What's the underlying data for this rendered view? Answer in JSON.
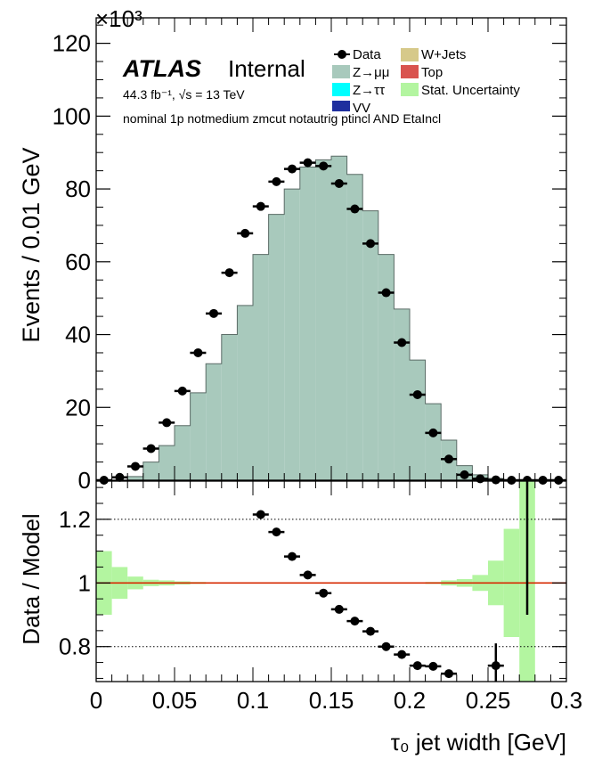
{
  "chart_data": [
    {
      "type": "histogram",
      "panel": "main",
      "experiment_label": "ATLAS",
      "status_label": "Internal",
      "lumi_text": "44.3 fb⁻¹, √s = 13 TeV",
      "selection_text": "nominal 1p notmedium zmcut notautrig ptincl AND EtaIncl",
      "ylabel": "Events / 0.01 GeV",
      "y_multiplier": "×10³",
      "ylim": [
        0,
        127
      ],
      "yticks": [
        "0",
        "20",
        "40",
        "60",
        "80",
        "100",
        "120"
      ],
      "xlim": [
        0,
        0.3
      ],
      "bin_width": 0.01,
      "legend": {
        "col1": [
          "Data",
          "Z→μμ",
          "Z→ττ",
          "VV"
        ],
        "col2": [
          "W+Jets",
          "Top",
          "Stat. Uncertainty"
        ]
      },
      "colors": {
        "zmumu": "#a8c9bc",
        "ztautau": "#00ffff",
        "vv": "#1f2f9e",
        "wjets": "#d6c98a",
        "top": "#d9534f",
        "stat_unc": "#b3f5a0",
        "ratio_line": "#d62800"
      },
      "mc_bins": [
        0,
        0,
        1,
        5,
        9.5,
        15,
        24,
        32,
        40,
        48,
        62,
        73,
        80,
        86,
        88,
        89,
        84,
        74,
        62,
        47,
        33,
        21,
        11,
        4,
        1.5,
        0.5,
        0,
        0,
        0,
        0
      ],
      "data_x": [
        0.005,
        0.015,
        0.025,
        0.035,
        0.045,
        0.055,
        0.065,
        0.075,
        0.085,
        0.095,
        0.105,
        0.115,
        0.125,
        0.135,
        0.145,
        0.155,
        0.165,
        0.175,
        0.185,
        0.195,
        0.205,
        0.215,
        0.225,
        0.235,
        0.245,
        0.255,
        0.265,
        0.275,
        0.285,
        0.295
      ],
      "data_y": [
        0,
        0.8,
        3.8,
        8.7,
        15.8,
        24.5,
        35,
        45.8,
        57,
        67.8,
        75.2,
        82,
        85.5,
        87.2,
        86.3,
        81.5,
        74.5,
        65,
        51.5,
        37.8,
        23.5,
        13,
        5.8,
        1.5,
        0.4,
        0.1,
        0,
        0,
        0,
        0
      ]
    },
    {
      "type": "scatter",
      "panel": "ratio",
      "ylabel": "Data / Model",
      "xlabel": "τ₀ jet width [GeV]",
      "ylim": [
        0.69,
        1.32
      ],
      "yticks": [
        "0.8",
        "1",
        "1.2"
      ],
      "xticks": [
        "0",
        "0.05",
        "0.1",
        "0.15",
        "0.2",
        "0.25",
        "0.3"
      ],
      "xlim": [
        0,
        0.3
      ],
      "unc_band_halfwidth": [
        0.1,
        0.05,
        0.02,
        0.01,
        0.008,
        0.005,
        0.003,
        0.002,
        0.002,
        0.001,
        0.001,
        0.001,
        0.001,
        0.001,
        0.001,
        0.001,
        0.001,
        0.001,
        0.001,
        0.001,
        0.002,
        0.003,
        0.008,
        0.012,
        0.025,
        0.07,
        0.17,
        0.35,
        0,
        0
      ],
      "ratio_x": [
        0.105,
        0.115,
        0.125,
        0.135,
        0.145,
        0.155,
        0.165,
        0.175,
        0.185,
        0.195,
        0.205,
        0.215,
        0.225,
        0.255,
        0.275
      ],
      "ratio_y": [
        1.215,
        1.16,
        1.083,
        1.025,
        0.968,
        0.917,
        0.88,
        0.848,
        0.8,
        0.775,
        0.74,
        0.738,
        0.715,
        0.74,
        1.5
      ],
      "ratio_err": [
        0.004,
        0.004,
        0.004,
        0.004,
        0.004,
        0.004,
        0.004,
        0.004,
        0.004,
        0.004,
        0.004,
        0.005,
        0.006,
        0.07,
        0.6
      ]
    }
  ]
}
